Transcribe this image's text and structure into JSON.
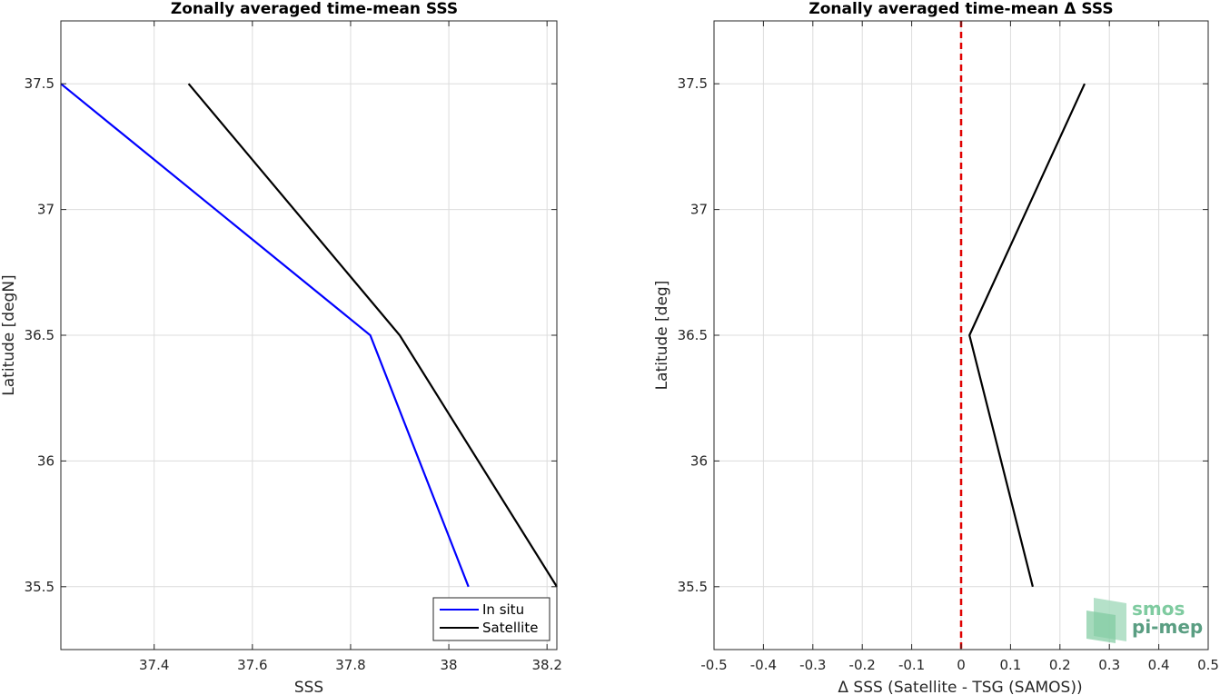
{
  "chart_data": [
    {
      "type": "line",
      "title": "Zonally averaged time-mean SSS",
      "xlabel": "SSS",
      "ylabel": "Latitude [degN]",
      "xlim": [
        37.21,
        38.22
      ],
      "ylim": [
        35.25,
        37.75
      ],
      "xticks": [
        "37.4",
        "37.6",
        "37.8",
        "38",
        "38.2"
      ],
      "yticks": [
        "35.5",
        "36",
        "36.5",
        "37",
        "37.5"
      ],
      "grid": true,
      "legend_position": "bottom-right",
      "series": [
        {
          "name": "In situ",
          "color": "#0000ff",
          "x": [
            38.04,
            37.84,
            37.21
          ],
          "y": [
            35.5,
            36.5,
            37.5
          ]
        },
        {
          "name": "Satellite",
          "color": "#000000",
          "x": [
            38.22,
            37.9,
            37.47
          ],
          "y": [
            35.5,
            36.5,
            37.5
          ]
        }
      ]
    },
    {
      "type": "line",
      "title": "Zonally averaged time-mean Δ SSS",
      "xlabel": "Δ SSS (Satellite - TSG (SAMOS))",
      "ylabel": "Latitude [deg]",
      "xlim": [
        -0.5,
        0.5
      ],
      "ylim": [
        35.25,
        37.75
      ],
      "xticks": [
        "-0.5",
        "-0.4",
        "-0.3",
        "-0.2",
        "-0.1",
        "0",
        "0.1",
        "0.2",
        "0.3",
        "0.4",
        "0.5"
      ],
      "yticks": [
        "35.5",
        "36",
        "36.5",
        "37",
        "37.5"
      ],
      "grid": true,
      "reference_line": {
        "x": 0,
        "color": "#e00000",
        "style": "dashed"
      },
      "series": [
        {
          "color": "#000000",
          "x": [
            0.145,
            0.017,
            0.25
          ],
          "y": [
            35.5,
            36.5,
            37.5
          ]
        }
      ]
    }
  ],
  "logo": {
    "line1": "smos",
    "line2": "pi-mep"
  }
}
